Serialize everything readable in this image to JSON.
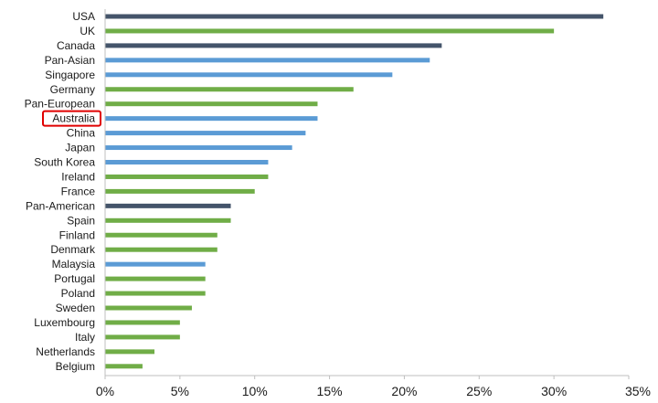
{
  "chart_data": {
    "type": "bar",
    "orientation": "horizontal",
    "categories": [
      "USA",
      "UK",
      "Canada",
      "Pan-Asian",
      "Singapore",
      "Germany",
      "Pan-European",
      "Australia",
      "China",
      "Japan",
      "South Korea",
      "Ireland",
      "France",
      "Pan-American",
      "Spain",
      "Finland",
      "Denmark",
      "Malaysia",
      "Portugal",
      "Poland",
      "Sweden",
      "Luxembourg",
      "Italy",
      "Netherlands",
      "Belgium"
    ],
    "values": [
      33.3,
      30.0,
      22.5,
      21.7,
      19.2,
      16.6,
      14.2,
      14.2,
      13.4,
      12.5,
      10.9,
      10.9,
      10.0,
      8.4,
      8.4,
      7.5,
      7.5,
      6.7,
      6.7,
      6.7,
      5.8,
      5.0,
      5.0,
      3.3,
      2.5
    ],
    "groups": [
      "americas",
      "europe",
      "americas",
      "asia",
      "asia",
      "europe",
      "europe",
      "asia",
      "asia",
      "asia",
      "asia",
      "europe",
      "europe",
      "americas",
      "europe",
      "europe",
      "europe",
      "asia",
      "europe",
      "europe",
      "europe",
      "europe",
      "europe",
      "europe",
      "europe"
    ],
    "group_colors": {
      "americas": "#44546a",
      "europe": "#70ad47",
      "asia": "#5b9bd5"
    },
    "xlim": [
      0,
      35
    ],
    "xticks": [
      0,
      5,
      10,
      15,
      20,
      25,
      30,
      35
    ],
    "xtick_labels": [
      "0%",
      "5%",
      "10%",
      "15%",
      "20%",
      "25%",
      "30%",
      "35%"
    ],
    "highlighted_category": "Australia",
    "highlight_color": "#e00000",
    "grid": false,
    "legend": "none",
    "title": "",
    "xlabel": "",
    "ylabel": ""
  }
}
